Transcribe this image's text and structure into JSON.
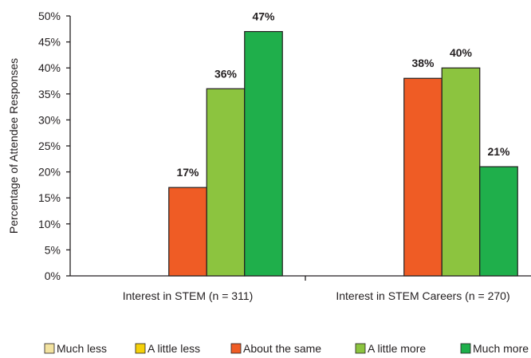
{
  "chart_data": {
    "type": "bar",
    "ylabel": "Percentage of Attendee Responses",
    "xlabel": "",
    "ylim": [
      0,
      50
    ],
    "yticks": [
      0,
      5,
      10,
      15,
      20,
      25,
      30,
      35,
      40,
      45,
      50
    ],
    "ytick_labels": [
      "0%",
      "5%",
      "10%",
      "15%",
      "20%",
      "25%",
      "30%",
      "35%",
      "40%",
      "45%",
      "50%"
    ],
    "categories": [
      "Interest in STEM (n = 311)",
      "Interest in STEM Careers (n = 270)"
    ],
    "series": [
      {
        "name": "Much less",
        "color": "#f3e3a0",
        "values": [
          0,
          0
        ],
        "labels": [
          "",
          ""
        ]
      },
      {
        "name": "A little less",
        "color": "#f5d10a",
        "values": [
          0,
          0
        ],
        "labels": [
          "",
          ""
        ]
      },
      {
        "name": "About the same",
        "color": "#ef5c25",
        "values": [
          17,
          38
        ],
        "labels": [
          "17%",
          "38%"
        ]
      },
      {
        "name": "A little more",
        "color": "#8cc43f",
        "values": [
          36,
          40
        ],
        "labels": [
          "36%",
          "40%"
        ]
      },
      {
        "name": "Much more",
        "color": "#1faf4b",
        "values": [
          47,
          21
        ],
        "labels": [
          "47%",
          "21%"
        ]
      }
    ],
    "legend_position": "bottom",
    "grid": false
  }
}
